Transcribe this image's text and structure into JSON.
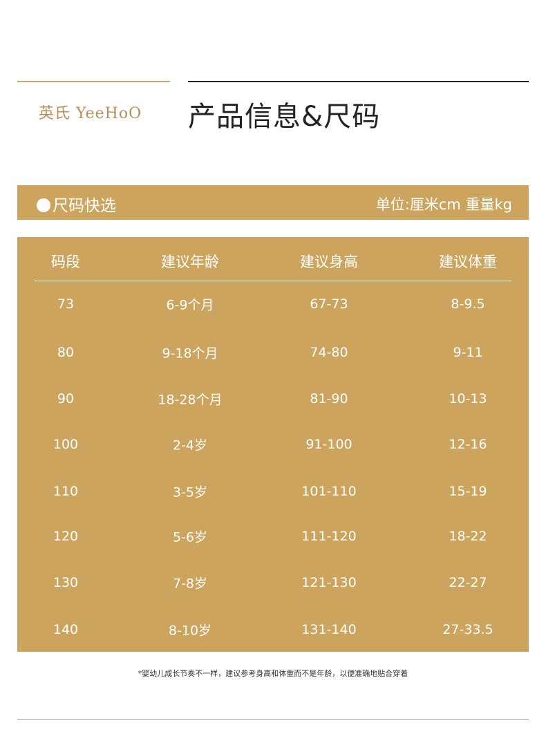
{
  "logo": "英氏 YeeHoO",
  "title": "产品信息&尺码",
  "band": {
    "left": "尺码快选",
    "right": "单位:厘米cm 重量kg"
  },
  "table": {
    "headers": [
      "码段",
      "建议年龄",
      "建议身高",
      "建议体重"
    ],
    "rows": [
      [
        "73",
        "6-9个月",
        "67-73",
        "8-9.5"
      ],
      [
        "80",
        "9-18个月",
        "74-80",
        "9-11"
      ],
      [
        "90",
        "18-28个月",
        "81-90",
        "10-13"
      ],
      [
        "100",
        "2-4岁",
        "91-100",
        "12-16"
      ],
      [
        "110",
        "3-5岁",
        "101-110",
        "15-19"
      ],
      [
        "120",
        "5-6岁",
        "111-120",
        "18-22"
      ],
      [
        "130",
        "7-8岁",
        "121-130",
        "22-27"
      ],
      [
        "140",
        "8-10岁",
        "131-140",
        "27-33.5"
      ]
    ]
  },
  "note": "*婴幼儿成长节奏不一样，建议参考身高和体重而不是年龄，以便准确地贴合穿着",
  "colors": {
    "gold": "#cda45e",
    "logo": "#b88f58"
  }
}
